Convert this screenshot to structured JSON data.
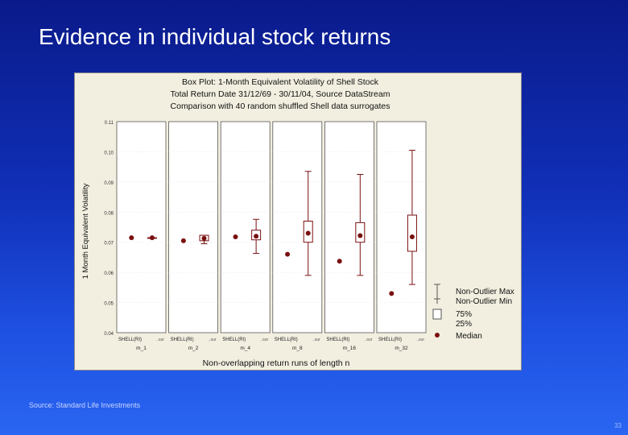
{
  "slide": {
    "title": "Evidence in individual stock returns",
    "source": "Source: Standard Life Investments",
    "page_number": "33"
  },
  "chart_data": {
    "type": "box",
    "title_lines": [
      "Box Plot: 1-Month Equivalent Volatility of Shell Stock",
      "Total Return Date 31/12/69 - 30/11/04, Source DataStream",
      "Comparison with 40 random shuffled Shell data surrogates"
    ],
    "ylabel": "1 Month Equivalent Volatility",
    "xlabel": "Non-overlapping return runs of length n",
    "ylim": [
      0.04,
      0.11
    ],
    "yticks": [
      "0.11",
      "0.10",
      "0.09",
      "0.08",
      "0.07",
      "0.06",
      "0.05",
      "0.04"
    ],
    "ytick_values": [
      0.11,
      0.1,
      0.09,
      0.08,
      0.07,
      0.06,
      0.05,
      0.04
    ],
    "panels": [
      {
        "name": "m_1",
        "label_left": "SHELL(RI)",
        "label_right": "..sur",
        "shell": 0.0715,
        "surrogate": {
          "median": 0.0715,
          "q1": 0.0715,
          "q3": 0.0715,
          "min": 0.0715,
          "max": 0.0715
        }
      },
      {
        "name": "m_2",
        "label_left": "SHELL(RI)",
        "label_right": "..sur",
        "shell": 0.0705,
        "surrogate": {
          "median": 0.0713,
          "q1": 0.0705,
          "q3": 0.0723,
          "min": 0.0695,
          "max": 0.0723
        }
      },
      {
        "name": "m_4",
        "label_left": "SHELL(RI)",
        "label_right": "..sur",
        "shell": 0.0718,
        "surrogate": {
          "median": 0.072,
          "q1": 0.0708,
          "q3": 0.074,
          "min": 0.0663,
          "max": 0.0776
        }
      },
      {
        "name": "m_8",
        "label_left": "SHELL(RI)",
        "label_right": "..sur",
        "shell": 0.066,
        "surrogate": {
          "median": 0.073,
          "q1": 0.07,
          "q3": 0.077,
          "min": 0.059,
          "max": 0.0935
        }
      },
      {
        "name": "m_16",
        "label_left": "SHELL(RI)",
        "label_right": "..sur",
        "shell": 0.0637,
        "surrogate": {
          "median": 0.0722,
          "q1": 0.07,
          "q3": 0.0765,
          "min": 0.059,
          "max": 0.0925
        }
      },
      {
        "name": "m_32",
        "label_left": "SHELL(RI)",
        "label_right": "..sur",
        "shell": 0.053,
        "surrogate": {
          "median": 0.0718,
          "q1": 0.067,
          "q3": 0.079,
          "min": 0.056,
          "max": 0.1005
        }
      }
    ],
    "legend": {
      "placement": "bottom-right",
      "items": [
        "Non-Outlier Max",
        "Non-Outlier Min",
        "75%",
        "25%",
        "Median"
      ]
    },
    "colors": {
      "marks": "#7a1010",
      "frame_bg": "#f2efe0",
      "plot_bg": "#ffffff"
    }
  }
}
